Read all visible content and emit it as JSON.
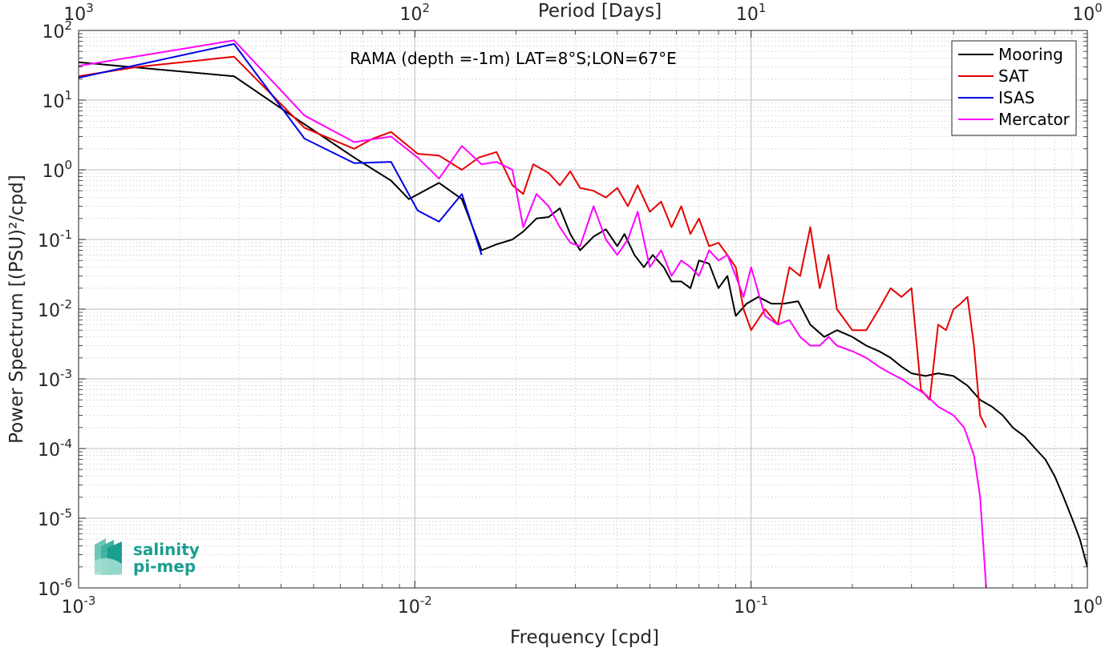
{
  "chart_data": {
    "type": "line",
    "title": "RAMA (depth =-1m) LAT=8°S;LON=67°E",
    "xlabel": "Frequency [cpd]",
    "ylabel": "Power Spectrum [(PSU)²/cpd]",
    "top_axis_label": "Period [Days]",
    "xscale": "log",
    "yscale": "log",
    "xlim": [
      0.001,
      1
    ],
    "ylim": [
      1e-06,
      100
    ],
    "x_ticks": [
      {
        "base": "10",
        "exp": "-3"
      },
      {
        "base": "10",
        "exp": "-2"
      },
      {
        "base": "10",
        "exp": "-1"
      },
      {
        "base": "10",
        "exp": "0"
      }
    ],
    "top_ticks": [
      {
        "base": "10",
        "exp": "3"
      },
      {
        "base": "10",
        "exp": "2"
      },
      {
        "base": "10",
        "exp": "1"
      },
      {
        "base": "10",
        "exp": "0"
      }
    ],
    "y_ticks": [
      {
        "base": "10",
        "exp": "2"
      },
      {
        "base": "10",
        "exp": "1"
      },
      {
        "base": "10",
        "exp": "0"
      },
      {
        "base": "10",
        "exp": "-1"
      },
      {
        "base": "10",
        "exp": "-2"
      },
      {
        "base": "10",
        "exp": "-3"
      },
      {
        "base": "10",
        "exp": "-4"
      },
      {
        "base": "10",
        "exp": "-5"
      },
      {
        "base": "10",
        "exp": "-6"
      }
    ],
    "grid": true,
    "legend_position": "top-right",
    "series": [
      {
        "name": "Mooring",
        "color": "#000000",
        "x": [
          0.001,
          0.0029,
          0.0047,
          0.0066,
          0.0085,
          0.0096,
          0.0118,
          0.0138,
          0.0158,
          0.0175,
          0.0195,
          0.021,
          0.023,
          0.025,
          0.027,
          0.029,
          0.031,
          0.034,
          0.037,
          0.04,
          0.042,
          0.045,
          0.048,
          0.051,
          0.055,
          0.058,
          0.062,
          0.066,
          0.07,
          0.075,
          0.08,
          0.085,
          0.09,
          0.097,
          0.105,
          0.115,
          0.125,
          0.138,
          0.15,
          0.165,
          0.18,
          0.2,
          0.22,
          0.24,
          0.26,
          0.28,
          0.3,
          0.33,
          0.36,
          0.4,
          0.44,
          0.48,
          0.52,
          0.56,
          0.6,
          0.65,
          0.7,
          0.75,
          0.8,
          0.85,
          0.9,
          0.95,
          1.0
        ],
        "y": [
          35,
          22,
          4.5,
          1.5,
          0.7,
          0.38,
          0.65,
          0.38,
          0.07,
          0.085,
          0.1,
          0.13,
          0.2,
          0.21,
          0.28,
          0.12,
          0.07,
          0.11,
          0.14,
          0.08,
          0.12,
          0.06,
          0.04,
          0.06,
          0.04,
          0.025,
          0.025,
          0.02,
          0.05,
          0.045,
          0.02,
          0.03,
          0.008,
          0.012,
          0.015,
          0.012,
          0.012,
          0.013,
          0.006,
          0.004,
          0.005,
          0.004,
          0.003,
          0.0025,
          0.002,
          0.0015,
          0.0012,
          0.0011,
          0.0012,
          0.0011,
          0.0008,
          0.0005,
          0.0004,
          0.0003,
          0.0002,
          0.00015,
          0.0001,
          7e-05,
          4e-05,
          2e-05,
          1e-05,
          5e-06,
          2e-06
        ]
      },
      {
        "name": "SAT",
        "color": "#e60000",
        "x": [
          0.001,
          0.0015,
          0.0029,
          0.0047,
          0.0066,
          0.0075,
          0.0085,
          0.0102,
          0.0118,
          0.0138,
          0.0155,
          0.0175,
          0.0195,
          0.021,
          0.0225,
          0.025,
          0.027,
          0.029,
          0.031,
          0.034,
          0.037,
          0.04,
          0.043,
          0.046,
          0.05,
          0.054,
          0.058,
          0.062,
          0.066,
          0.07,
          0.075,
          0.08,
          0.085,
          0.09,
          0.095,
          0.1,
          0.11,
          0.12,
          0.13,
          0.14,
          0.15,
          0.16,
          0.17,
          0.18,
          0.2,
          0.22,
          0.24,
          0.26,
          0.28,
          0.3,
          0.32,
          0.34,
          0.36,
          0.38,
          0.4,
          0.42,
          0.44,
          0.46,
          0.48,
          0.5
        ],
        "y": [
          22,
          30,
          42,
          4.0,
          2.0,
          2.8,
          3.5,
          1.7,
          1.6,
          1.0,
          1.5,
          1.8,
          0.6,
          0.45,
          1.2,
          0.9,
          0.6,
          0.95,
          0.55,
          0.5,
          0.4,
          0.55,
          0.3,
          0.6,
          0.25,
          0.35,
          0.15,
          0.3,
          0.12,
          0.2,
          0.08,
          0.09,
          0.06,
          0.04,
          0.01,
          0.005,
          0.01,
          0.006,
          0.04,
          0.03,
          0.15,
          0.02,
          0.06,
          0.01,
          0.005,
          0.005,
          0.01,
          0.02,
          0.015,
          0.02,
          0.0007,
          0.0005,
          0.006,
          0.005,
          0.01,
          0.012,
          0.015,
          0.003,
          0.0003,
          0.0002
        ]
      },
      {
        "name": "ISAS",
        "color": "#0000e6",
        "x": [
          0.001,
          0.0029,
          0.0047,
          0.0066,
          0.0085,
          0.0102,
          0.0118,
          0.0138,
          0.0158
        ],
        "y": [
          21,
          64,
          2.8,
          1.25,
          1.3,
          0.26,
          0.18,
          0.45,
          0.06
        ]
      },
      {
        "name": "Mercator",
        "color": "#ff00ff",
        "x": [
          0.001,
          0.0029,
          0.0047,
          0.0066,
          0.0085,
          0.0102,
          0.0118,
          0.0138,
          0.0158,
          0.0175,
          0.0195,
          0.021,
          0.023,
          0.025,
          0.027,
          0.029,
          0.031,
          0.034,
          0.037,
          0.04,
          0.043,
          0.046,
          0.05,
          0.054,
          0.058,
          0.062,
          0.066,
          0.07,
          0.075,
          0.08,
          0.085,
          0.09,
          0.095,
          0.1,
          0.11,
          0.12,
          0.13,
          0.14,
          0.15,
          0.16,
          0.17,
          0.18,
          0.2,
          0.22,
          0.24,
          0.26,
          0.28,
          0.3,
          0.33,
          0.36,
          0.4,
          0.43,
          0.46,
          0.48,
          0.5
        ],
        "y": [
          31,
          72,
          6.0,
          2.5,
          3.0,
          1.5,
          0.75,
          2.2,
          1.2,
          1.3,
          1.0,
          0.15,
          0.45,
          0.3,
          0.15,
          0.09,
          0.08,
          0.3,
          0.1,
          0.06,
          0.1,
          0.25,
          0.04,
          0.07,
          0.03,
          0.05,
          0.04,
          0.03,
          0.07,
          0.05,
          0.06,
          0.03,
          0.015,
          0.04,
          0.008,
          0.006,
          0.007,
          0.004,
          0.003,
          0.003,
          0.004,
          0.003,
          0.0025,
          0.002,
          0.0015,
          0.0012,
          0.001,
          0.0008,
          0.0006,
          0.0004,
          0.0003,
          0.0002,
          8e-05,
          2e-05,
          1e-06
        ]
      }
    ]
  },
  "logo": {
    "line1": "salinity",
    "line2": "pi-mep",
    "color": "#1a9e8f"
  }
}
